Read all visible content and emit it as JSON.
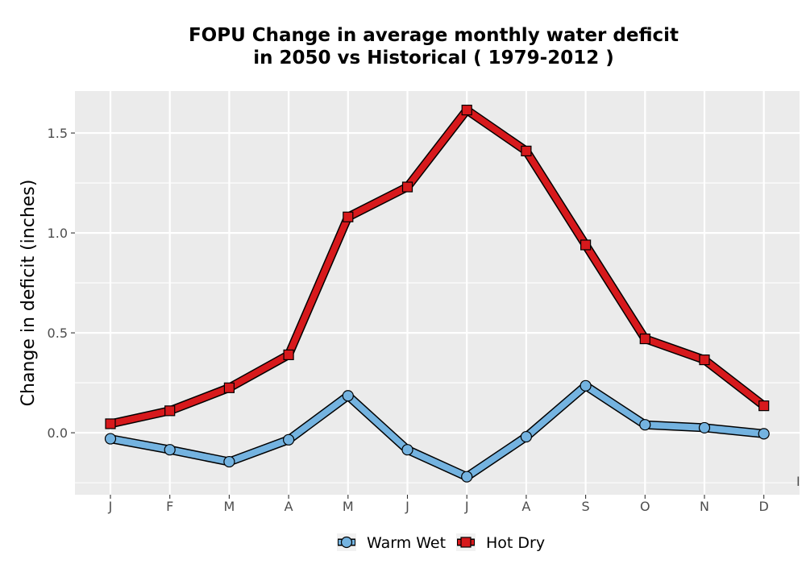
{
  "chart_data": {
    "type": "line",
    "title_lines": [
      "FOPU  Change in average monthly water deficit",
      "in 2050 vs Historical ( 1979-2012 )"
    ],
    "xlabel": "",
    "ylabel": "Change in deficit (inches)",
    "categories": [
      "J",
      "F",
      "M",
      "A",
      "M",
      "J",
      "J",
      "A",
      "S",
      "O",
      "N",
      "D"
    ],
    "ylim": [
      -0.31,
      1.71
    ],
    "yticks": [
      0.0,
      0.5,
      1.0,
      1.5
    ],
    "ytick_labels": [
      "0.0",
      "0.5",
      "1.0",
      "1.5"
    ],
    "grid": true,
    "legend_position": "bottom",
    "stray_mark": "I",
    "series": [
      {
        "name": "Warm Wet",
        "color": "#74b3e0",
        "marker": "circle",
        "values": [
          -0.03,
          -0.085,
          -0.145,
          -0.035,
          0.185,
          -0.085,
          -0.22,
          -0.02,
          0.235,
          0.04,
          0.025,
          -0.005
        ]
      },
      {
        "name": "Hot Dry",
        "color": "#d7191c",
        "marker": "square",
        "values": [
          0.045,
          0.11,
          0.225,
          0.39,
          1.08,
          1.23,
          1.615,
          1.41,
          0.94,
          0.47,
          0.365,
          0.135
        ]
      }
    ]
  }
}
